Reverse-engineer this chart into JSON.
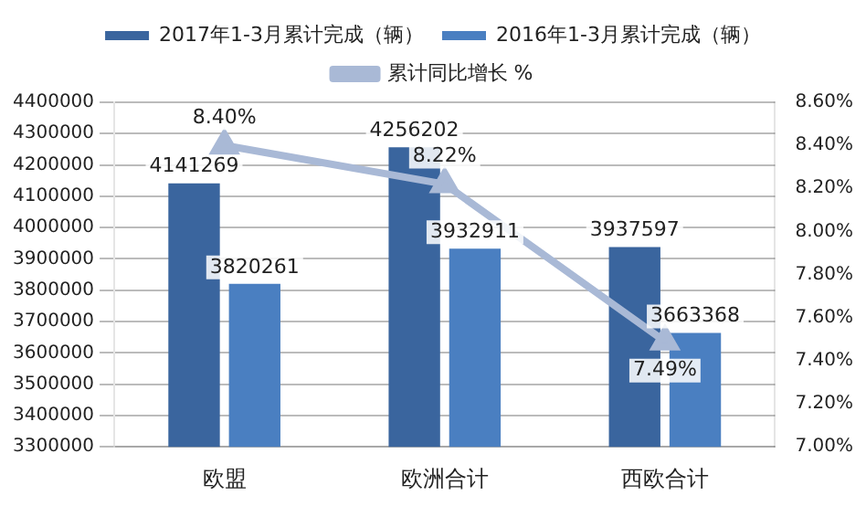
{
  "chart_data": {
    "type": "bar",
    "categories": [
      "欧盟",
      "欧洲合计",
      "西欧合计"
    ],
    "series": [
      {
        "name": "2017年1-3月累计完成（辆）",
        "color": "#3a659e",
        "values": [
          4141269,
          4256202,
          3937597
        ],
        "value_labels": [
          "4141269",
          "4256202",
          "3937597"
        ]
      },
      {
        "name": "2016年1-3月累计完成（辆）",
        "color": "#4a7fc1",
        "values": [
          3820261,
          3932911,
          3663368
        ],
        "value_labels": [
          "3820261",
          "3932911",
          "3663368"
        ]
      },
      {
        "name": "累计同比增长 %",
        "type": "line",
        "axis": "y2",
        "color": "#a9b9d6",
        "marker": "triangle",
        "values": [
          8.4,
          8.22,
          7.49
        ],
        "value_labels": [
          "8.40%",
          "8.22%",
          "7.49%"
        ]
      }
    ],
    "ylim": [
      3300000,
      4400000
    ],
    "yticks": [
      3300000,
      3400000,
      3500000,
      3600000,
      3700000,
      3800000,
      3900000,
      4000000,
      4100000,
      4200000,
      4300000,
      4400000
    ],
    "y2lim": [
      7.0,
      8.6
    ],
    "y2ticks": [
      {
        "value": 7.0,
        "label": "7.00%"
      },
      {
        "value": 7.2,
        "label": "7.20%"
      },
      {
        "value": 7.4,
        "label": "7.40%"
      },
      {
        "value": 7.6,
        "label": "7.60%"
      },
      {
        "value": 7.8,
        "label": "7.80%"
      },
      {
        "value": 8.0,
        "label": "8.00%"
      },
      {
        "value": 8.2,
        "label": "8.20%"
      },
      {
        "value": 8.4,
        "label": "8.40%"
      },
      {
        "value": 8.6,
        "label": "8.60%"
      }
    ],
    "grid": "y",
    "legend": "top"
  }
}
